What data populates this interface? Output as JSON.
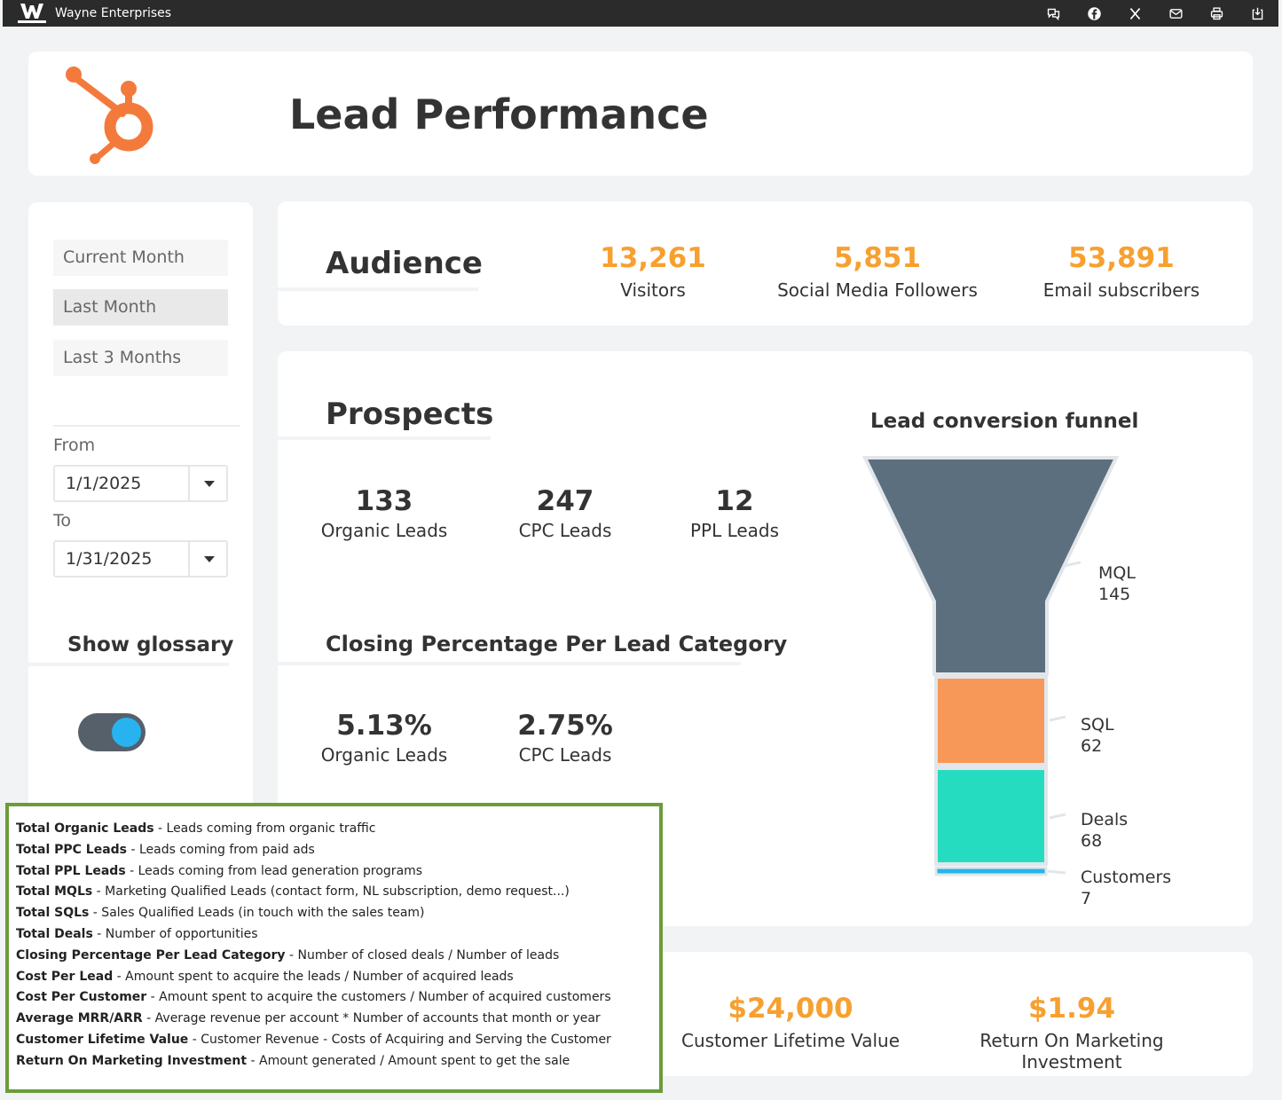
{
  "app": {
    "title": "Wayne Enterprises",
    "logo_icon": "wayne-logo"
  },
  "topbar_icons": [
    "chat-icon",
    "facebook-icon",
    "x-icon",
    "mail-icon",
    "print-icon",
    "export-icon"
  ],
  "header": {
    "title": "Lead Performance",
    "logo_icon": "hubspot-logo",
    "accent": "#f47a3c"
  },
  "sidebar": {
    "ranges": [
      "Current Month",
      "Last Month",
      "Last 3 Months"
    ],
    "active_range": "Last Month",
    "from_label": "From",
    "from_value": "1/1/2025",
    "to_label": "To",
    "to_value": "1/31/2025",
    "glossary_label": "Show glossary",
    "glossary_on": true
  },
  "audience": {
    "title": "Audience",
    "kpis": [
      {
        "value": "13,261",
        "label": "Visitors"
      },
      {
        "value": "5,851",
        "label": "Social Media Followers"
      },
      {
        "value": "53,891",
        "label": "Email subscribers"
      }
    ]
  },
  "prospects": {
    "title": "Prospects",
    "leads": [
      {
        "value": "133",
        "label": "Organic Leads"
      },
      {
        "value": "247",
        "label": "CPC Leads"
      },
      {
        "value": "12",
        "label": "PPL Leads"
      }
    ],
    "closing_title": "Closing Percentage Per Lead Category",
    "closing": [
      {
        "value": "5.13%",
        "label": "Organic Leads"
      },
      {
        "value": "2.75%",
        "label": "CPC Leads"
      }
    ]
  },
  "funnel": {
    "title": "Lead conversion funnel",
    "stages": [
      {
        "name": "MQL",
        "value": "145",
        "color": "#5c6f7e"
      },
      {
        "name": "SQL",
        "value": "62",
        "color": "#f89858"
      },
      {
        "name": "Deals",
        "value": "68",
        "color": "#26dcc0"
      },
      {
        "name": "Customers",
        "value": "7",
        "color": "#26b5ea"
      }
    ]
  },
  "bottom_kpis": [
    {
      "value": "$24,000",
      "label": "Customer Lifetime Value"
    },
    {
      "value": "$1.94",
      "label": "Return On Marketing Investment"
    }
  ],
  "glossary": [
    {
      "term": "Total Organic Leads",
      "desc": " - Leads coming from organic traffic"
    },
    {
      "term": "Total PPC Leads",
      "desc": " - Leads coming from paid ads"
    },
    {
      "term": "Total PPL Leads",
      "desc": " - Leads coming from lead generation programs"
    },
    {
      "term": "Total MQLs",
      "desc": " - Marketing Qualified Leads (contact form, NL subscription, demo request...)"
    },
    {
      "term": "Total SQLs",
      "desc": " - Sales Qualified Leads (in touch with the sales team)"
    },
    {
      "term": "Total Deals",
      "desc": " - Number of opportunities"
    },
    {
      "term": "Closing Percentage Per Lead Category",
      "desc": " - Number of closed deals / Number of leads"
    },
    {
      "term": "Cost Per Lead",
      "desc": " - Amount spent to acquire the leads / Number of acquired leads"
    },
    {
      "term": "Cost Per Customer",
      "desc": "  - Amount spent to acquire the customers / Number of acquired customers"
    },
    {
      "term": "Average MRR/ARR",
      "desc": " - Average revenue per account * Number of accounts that month or year"
    },
    {
      "term": "Customer Lifetime Value",
      "desc": " - Customer Revenue - Costs of Acquiring and Serving the Customer"
    },
    {
      "term": "Return On Marketing Investment",
      "desc": " - Amount generated / Amount spent to get the sale"
    }
  ]
}
